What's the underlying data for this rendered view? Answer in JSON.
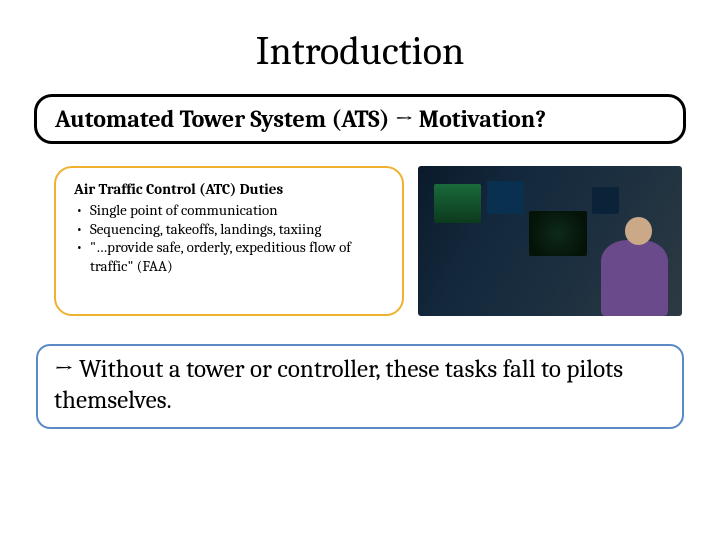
{
  "title": "Introduction",
  "banner": "Automated Tower System (ATS)  →  Motivation?",
  "duties": {
    "heading": "Air Traffic Control (ATC) Duties",
    "items": [
      "Single point of communication",
      "Sequencing, takeoffs, landings, taxiing",
      "\"…provide safe, orderly, expeditious flow of traffic\" (FAA)"
    ],
    "border_color": "#f0b030"
  },
  "conclusion": {
    "text": "→ Without a tower or controller, these tasks fall to pilots themselves.",
    "border_color": "#5a8ac6"
  },
  "colors": {
    "background": "#ffffff",
    "text": "#000000",
    "black_border": "#000000"
  },
  "typography": {
    "title_fontsize": 40,
    "banner_fontsize": 24,
    "duties_fontsize": 15,
    "conclusion_fontsize": 25,
    "font_family": "Cambria, Georgia, serif"
  },
  "layout": {
    "slide_width": 720,
    "slide_height": 540,
    "banner_radius": 18,
    "duties_radius": 18,
    "conclusion_radius": 14
  },
  "image": {
    "description": "Air traffic control room photograph with multiple radar/monitor screens and a seated controller",
    "dominant_colors": [
      "#0a1a2a",
      "#1a6a3a",
      "#6a4a8a",
      "#caa888"
    ]
  }
}
